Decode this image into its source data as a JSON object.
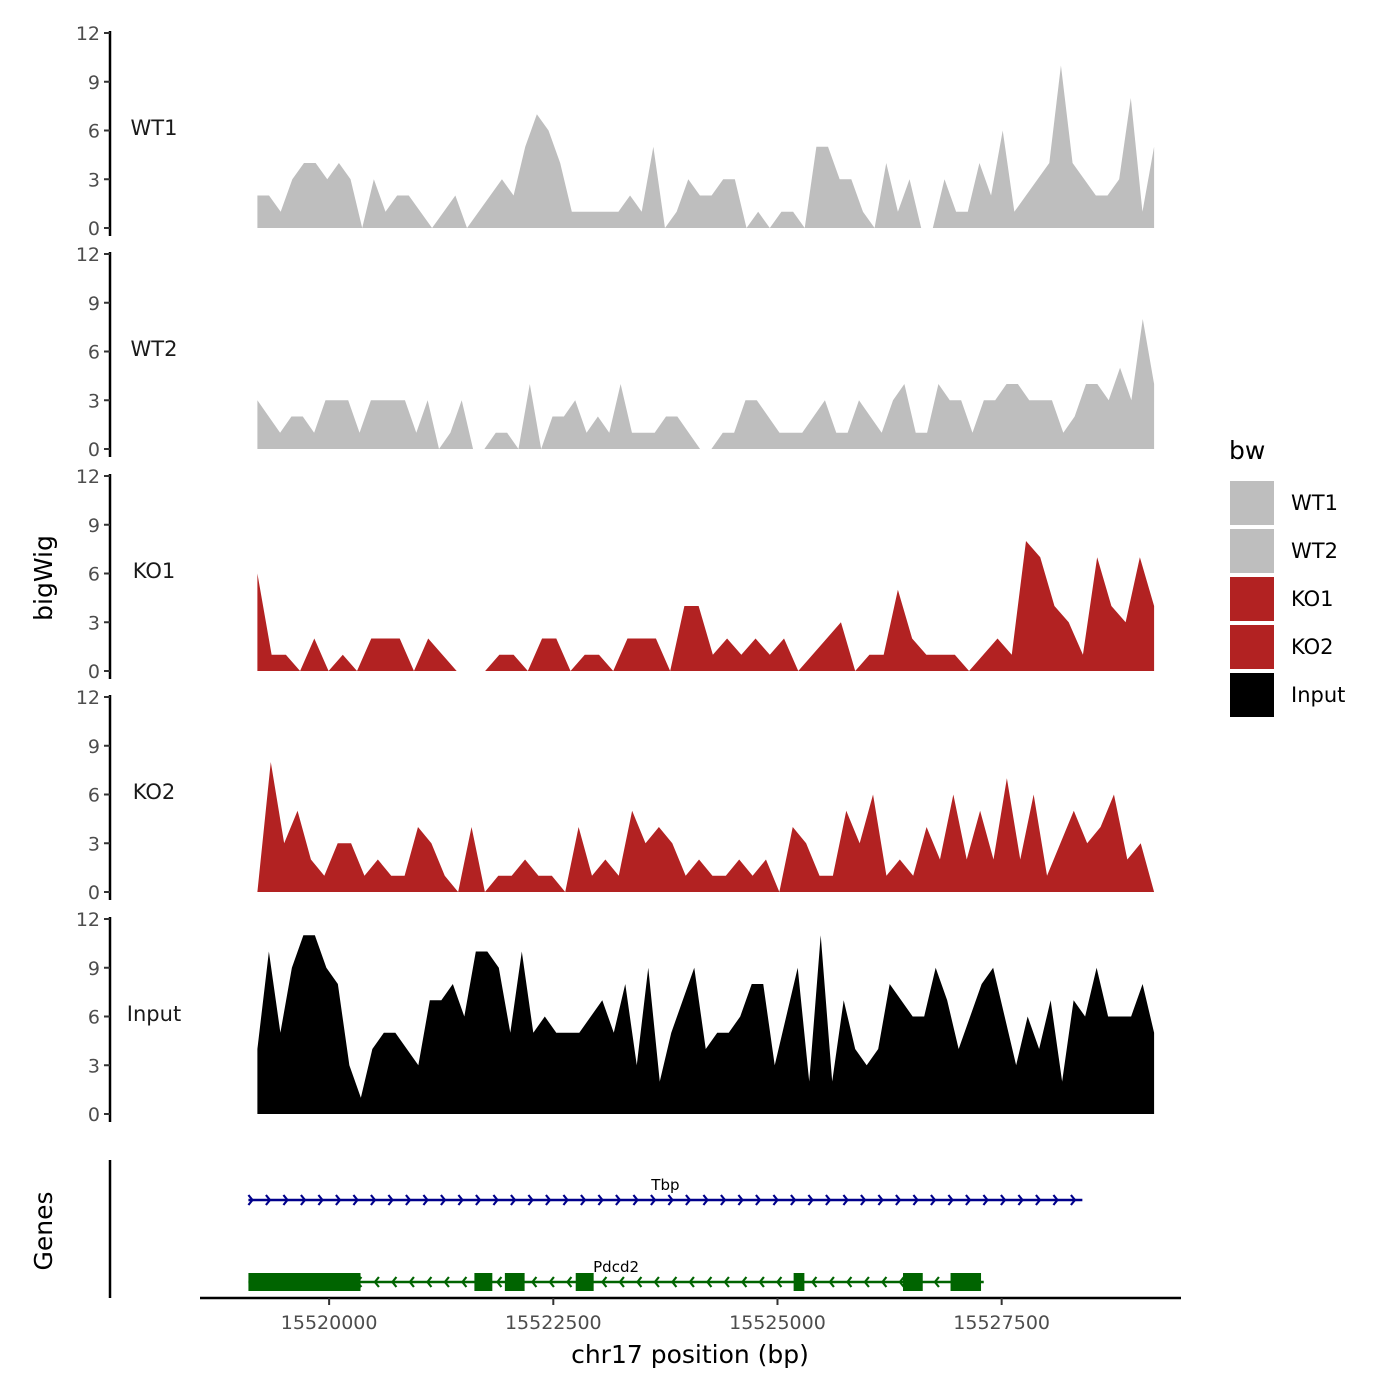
{
  "chart_data": {
    "type": "area",
    "ylabel": "bigWig",
    "gene_panel_label": "Genes",
    "xlabel": "chr17 position (bp)",
    "xlim": [
      15518560,
      15529500
    ],
    "x_ticks": [
      15520000,
      15522500,
      15525000,
      15527500
    ],
    "x_tick_labels": [
      "15520000",
      "15522500",
      "15525000",
      "15527500"
    ],
    "ylim": [
      0,
      12
    ],
    "y_ticks": [
      0,
      3,
      6,
      9,
      12
    ],
    "y_tick_labels": [
      "0",
      "3",
      "6",
      "9",
      "12"
    ],
    "legend": {
      "title": "bw",
      "position": "right",
      "entries": [
        {
          "label": "WT1",
          "color": "#bebebe"
        },
        {
          "label": "WT2",
          "color": "#bebebe"
        },
        {
          "label": "KO1",
          "color": "#b22222"
        },
        {
          "label": "KO2",
          "color": "#b22222"
        },
        {
          "label": "Input",
          "color": "#000000"
        }
      ]
    },
    "series": [
      {
        "name": "WT1",
        "color": "#bebebe",
        "x_start": 15519200,
        "x_end": 15529200,
        "values": [
          2,
          2,
          1,
          3,
          4,
          4,
          3,
          4,
          3,
          0,
          3,
          1,
          2,
          2,
          1,
          0,
          1,
          2,
          0,
          1,
          2,
          3,
          2,
          5,
          7,
          6,
          4,
          1,
          1,
          1,
          1,
          1,
          2,
          1,
          5,
          0,
          1,
          3,
          2,
          2,
          3,
          3,
          0,
          1,
          0,
          1,
          1,
          0,
          5,
          5,
          3,
          3,
          1,
          0,
          4,
          1,
          3,
          0,
          0,
          3,
          1,
          1,
          4,
          2,
          6,
          1,
          2,
          3,
          4,
          10,
          4,
          3,
          2,
          2,
          3,
          8,
          1,
          5
        ]
      },
      {
        "name": "WT2",
        "color": "#bebebe",
        "x_start": 15519200,
        "x_end": 15529200,
        "values": [
          3,
          2,
          1,
          2,
          2,
          1,
          3,
          3,
          3,
          1,
          3,
          3,
          3,
          3,
          1,
          3,
          0,
          1,
          3,
          0,
          0,
          1,
          1,
          0,
          4,
          0,
          2,
          2,
          3,
          1,
          2,
          1,
          4,
          1,
          1,
          1,
          2,
          2,
          1,
          0,
          0,
          1,
          1,
          3,
          3,
          2,
          1,
          1,
          1,
          2,
          3,
          1,
          1,
          3,
          2,
          1,
          3,
          4,
          1,
          1,
          4,
          3,
          3,
          1,
          3,
          3,
          4,
          4,
          3,
          3,
          3,
          1,
          2,
          4,
          4,
          3,
          5,
          3,
          8,
          4
        ]
      },
      {
        "name": "KO1",
        "color": "#b22222",
        "x_start": 15519200,
        "x_end": 15529200,
        "values": [
          6,
          1,
          1,
          0,
          2,
          0,
          1,
          0,
          2,
          2,
          2,
          0,
          2,
          1,
          0,
          0,
          0,
          1,
          1,
          0,
          2,
          2,
          0,
          1,
          1,
          0,
          2,
          2,
          2,
          0,
          4,
          4,
          1,
          2,
          1,
          2,
          1,
          2,
          0,
          1,
          2,
          3,
          0,
          1,
          1,
          5,
          2,
          1,
          1,
          1,
          0,
          1,
          2,
          1,
          8,
          7,
          4,
          3,
          1,
          7,
          4,
          3,
          7,
          4
        ]
      },
      {
        "name": "KO2",
        "color": "#b22222",
        "x_start": 15519200,
        "x_end": 15529200,
        "values": [
          0,
          8,
          3,
          5,
          2,
          1,
          3,
          3,
          1,
          2,
          1,
          1,
          4,
          3,
          1,
          0,
          4,
          0,
          1,
          1,
          2,
          1,
          1,
          0,
          4,
          1,
          2,
          1,
          5,
          3,
          4,
          3,
          1,
          2,
          1,
          1,
          2,
          1,
          2,
          0,
          4,
          3,
          1,
          1,
          5,
          3,
          6,
          1,
          2,
          1,
          4,
          2,
          6,
          2,
          5,
          2,
          7,
          2,
          6,
          1,
          3,
          5,
          3,
          4,
          6,
          2,
          3,
          0
        ]
      },
      {
        "name": "Input",
        "color": "#000000",
        "x_start": 15519200,
        "x_end": 15529200,
        "values": [
          4,
          10,
          5,
          9,
          11,
          11,
          9,
          8,
          3,
          1,
          4,
          5,
          5,
          4,
          3,
          7,
          7,
          8,
          6,
          10,
          10,
          9,
          5,
          10,
          5,
          6,
          5,
          5,
          5,
          6,
          7,
          5,
          8,
          3,
          9,
          2,
          5,
          7,
          9,
          4,
          5,
          5,
          6,
          8,
          8,
          3,
          6,
          9,
          2,
          11,
          2,
          7,
          4,
          3,
          4,
          8,
          7,
          6,
          6,
          9,
          7,
          4,
          6,
          8,
          9,
          6,
          3,
          6,
          4,
          7,
          2,
          7,
          6,
          9,
          6,
          6,
          6,
          8,
          5
        ]
      }
    ],
    "genes": [
      {
        "name": "Tbp",
        "start": 15519100,
        "end": 15528400,
        "strand": "+",
        "color": "#00008b",
        "exons": []
      },
      {
        "name": "Pdcd2",
        "start": 15519100,
        "end": 15527300,
        "strand": "-",
        "color": "#006400",
        "exons": [
          [
            15519100,
            15520350
          ],
          [
            15521620,
            15521820
          ],
          [
            15521960,
            15522180
          ],
          [
            15522750,
            15522950
          ],
          [
            15525180,
            15525300
          ],
          [
            15526400,
            15526620
          ],
          [
            15526930,
            15527270
          ]
        ]
      }
    ]
  }
}
